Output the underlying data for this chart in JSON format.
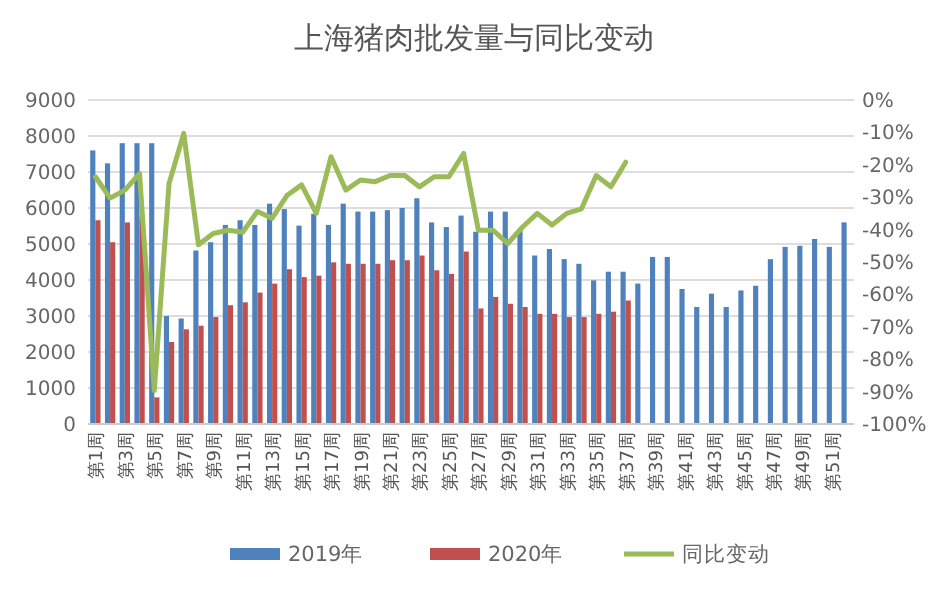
{
  "chart_data": {
    "type": "bar",
    "title": "上海猪肉批发量与同比变动",
    "categories": [
      "第1周",
      null,
      "第3周",
      null,
      "第5周",
      null,
      "第7周",
      null,
      "第9周",
      null,
      "第11周",
      null,
      "第13周",
      null,
      "第15周",
      null,
      "第17周",
      null,
      "第19周",
      null,
      "第21周",
      null,
      "第23周",
      null,
      "第25周",
      null,
      "第27周",
      null,
      "第29周",
      null,
      "第31周",
      null,
      "第33周",
      null,
      "第35周",
      null,
      "第37周",
      null,
      "第39周",
      null,
      "第41周",
      null,
      "第43周",
      null,
      "第45周",
      null,
      "第47周",
      null,
      "第49周",
      null,
      "第51周",
      null
    ],
    "series": [
      {
        "name": "2019年",
        "color": "#4f81bd",
        "values": [
          7600,
          7240,
          7800,
          7800,
          7800,
          3000,
          2930,
          4820,
          5050,
          5530,
          5660,
          5530,
          6120,
          5970,
          5510,
          5840,
          5530,
          6120,
          5900,
          5900,
          5940,
          6000,
          6270,
          5600,
          5470,
          5790,
          5340,
          5900,
          5900,
          5380,
          4680,
          4860,
          4580,
          4450,
          3990,
          4230,
          4230,
          3900,
          4640,
          4640,
          3750,
          3250,
          3620,
          3250,
          3710,
          3840,
          4580,
          4920,
          4950,
          5140,
          4920,
          5600
        ]
      },
      {
        "name": "2020年",
        "color": "#c0504d",
        "values": [
          5660,
          5050,
          5600,
          5750,
          740,
          2280,
          2630,
          2730,
          2970,
          3300,
          3380,
          3650,
          3900,
          4300,
          4080,
          4120,
          4490,
          4450,
          4450,
          4450,
          4550,
          4550,
          4680,
          4270,
          4170,
          4790,
          3210,
          3530,
          3340,
          3250,
          3060,
          3060,
          2970,
          2970,
          3060,
          3120,
          3430,
          null,
          null,
          null,
          null,
          null,
          null,
          null,
          null,
          null,
          null,
          null,
          null,
          null,
          null,
          null
        ]
      },
      {
        "name": "同比变动",
        "type": "line",
        "axis": "y2",
        "color": "#9bbb59",
        "values": [
          -23.7,
          -30.3,
          -27.8,
          -22.7,
          -89.7,
          -25.8,
          -10.3,
          -44.7,
          -41.2,
          -40.2,
          -40.8,
          -34.4,
          -36.5,
          -29.5,
          -26.2,
          -35,
          -17.5,
          -27.8,
          -24.7,
          -25.2,
          -23.3,
          -23.3,
          -26.8,
          -23.7,
          -23.7,
          -16.5,
          -40.2,
          -40.2,
          -44.3,
          -39.2,
          -35,
          -38.6,
          -35,
          -33.6,
          -23.3,
          -26.8,
          -19.2,
          null,
          null,
          null,
          null,
          null,
          null,
          null,
          null,
          null,
          null,
          null,
          null,
          null,
          null,
          null
        ]
      }
    ],
    "ylim": [
      0,
      9000
    ],
    "yticks": [
      0,
      1000,
      2000,
      3000,
      4000,
      5000,
      6000,
      7000,
      8000,
      9000
    ],
    "y2lim": [
      -100,
      0
    ],
    "y2ticks": [
      {
        "value": 0,
        "label": "0%"
      },
      {
        "value": -10,
        "label": "-10%"
      },
      {
        "value": -20,
        "label": "-20%"
      },
      {
        "value": -30,
        "label": "-30%"
      },
      {
        "value": -40,
        "label": "-40%"
      },
      {
        "value": -50,
        "label": "-50%"
      },
      {
        "value": -60,
        "label": "-60%"
      },
      {
        "value": -70,
        "label": "-70%"
      },
      {
        "value": -80,
        "label": "-80%"
      },
      {
        "value": -90,
        "label": "-90%"
      },
      {
        "value": -100,
        "label": "-100%"
      }
    ],
    "grid": "y",
    "legend": "bottom"
  }
}
